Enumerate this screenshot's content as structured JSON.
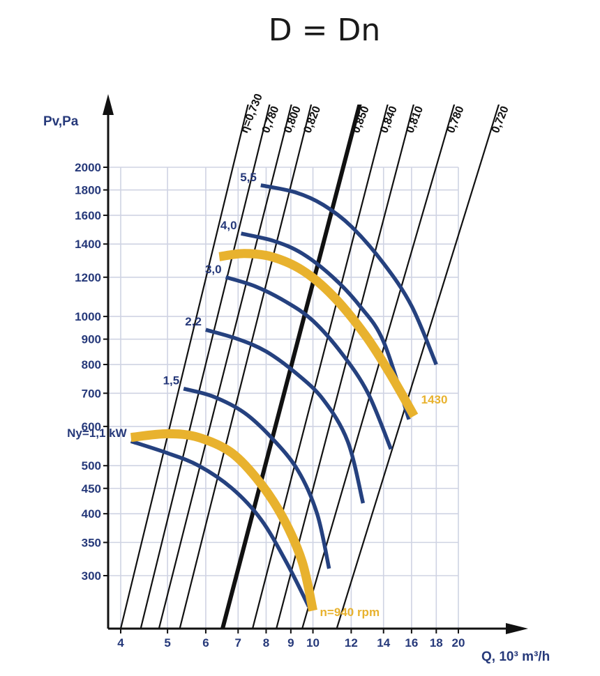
{
  "page": {
    "formula": "D = Dn"
  },
  "chart_data": {
    "type": "line",
    "title": "",
    "xlabel": "Q, 10³ m³/h",
    "ylabel": "Pv,Pa",
    "x_scale": "log",
    "y_scale": "log",
    "xlim": [
      4,
      20
    ],
    "ylim": [
      300,
      2000
    ],
    "x_ticks": [
      "4",
      "5",
      "6",
      "7",
      "8",
      "9",
      "10",
      "12",
      "14",
      "16",
      "18",
      "20"
    ],
    "y_ticks": [
      "300",
      "350",
      "400",
      "450",
      "500",
      "600",
      "700",
      "800",
      "900",
      "1000",
      "1200",
      "1400",
      "1600",
      "1800",
      "2000"
    ],
    "grid": true,
    "colors": {
      "axis": "#26397a",
      "power_curve": "#25417f",
      "speed_curve": "#e8b22e",
      "efficiency_line": "#111111",
      "grid": "#cfd3e3"
    },
    "efficiency_lines": [
      {
        "label": "η=0,730",
        "x_at_top": 7.4,
        "x_at_bottom": 4.0
      },
      {
        "label": "0,780",
        "x_at_top": 8.2,
        "x_at_bottom": 4.4
      },
      {
        "label": "0,800",
        "x_at_top": 9.1,
        "x_at_bottom": 4.8
      },
      {
        "label": "0,820",
        "x_at_top": 10.0,
        "x_at_bottom": 5.3
      },
      {
        "label": "0,850",
        "x_at_top": 12.6,
        "x_at_bottom": 6.5,
        "emphasis": true
      },
      {
        "label": "0,840",
        "x_at_top": 14.4,
        "x_at_bottom": 7.5
      },
      {
        "label": "0,810",
        "x_at_top": 16.3,
        "x_at_bottom": 8.4
      },
      {
        "label": "0,780",
        "x_at_top": 19.8,
        "x_at_bottom": 9.5
      },
      {
        "label": "0,720",
        "x_at_top": 24.5,
        "x_at_bottom": 11.2
      }
    ],
    "power_curves": [
      {
        "label": "5,5",
        "points": [
          [
            7.8,
            1840
          ],
          [
            9.2,
            1780
          ],
          [
            10.5,
            1680
          ],
          [
            12.0,
            1520
          ],
          [
            14.0,
            1280
          ],
          [
            16.0,
            1050
          ],
          [
            18.0,
            800
          ]
        ]
      },
      {
        "label": "4,0",
        "points": [
          [
            7.1,
            1470
          ],
          [
            8.3,
            1420
          ],
          [
            9.5,
            1340
          ],
          [
            11.0,
            1200
          ],
          [
            12.5,
            1050
          ],
          [
            14.0,
            890
          ],
          [
            15.8,
            620
          ]
        ]
      },
      {
        "label": "3,0",
        "points": [
          [
            6.6,
            1200
          ],
          [
            7.6,
            1150
          ],
          [
            8.8,
            1070
          ],
          [
            10.0,
            980
          ],
          [
            11.5,
            840
          ],
          [
            13.0,
            700
          ],
          [
            14.5,
            540
          ]
        ]
      },
      {
        "label": "2,2",
        "points": [
          [
            6.0,
            940
          ],
          [
            7.0,
            900
          ],
          [
            8.0,
            850
          ],
          [
            9.2,
            770
          ],
          [
            10.5,
            680
          ],
          [
            11.8,
            560
          ],
          [
            12.7,
            420
          ]
        ]
      },
      {
        "label": "1,5",
        "points": [
          [
            5.4,
            715
          ],
          [
            6.2,
            690
          ],
          [
            7.2,
            640
          ],
          [
            8.2,
            570
          ],
          [
            9.3,
            490
          ],
          [
            10.2,
            400
          ],
          [
            10.8,
            310
          ]
        ]
      },
      {
        "label": "Ny=1,1 kW",
        "points": [
          [
            4.2,
            560
          ],
          [
            5.0,
            530
          ],
          [
            5.8,
            500
          ],
          [
            6.8,
            450
          ],
          [
            7.8,
            390
          ],
          [
            8.8,
            320
          ],
          [
            9.8,
            260
          ]
        ]
      }
    ],
    "speed_curves": [
      {
        "label": "1430",
        "points": [
          [
            6.4,
            1320
          ],
          [
            7.2,
            1340
          ],
          [
            8.2,
            1320
          ],
          [
            9.5,
            1240
          ],
          [
            11.0,
            1100
          ],
          [
            12.8,
            920
          ],
          [
            14.4,
            770
          ],
          [
            16.2,
            630
          ]
        ]
      },
      {
        "label": "n=940 rpm",
        "points": [
          [
            4.2,
            570
          ],
          [
            5.0,
            580
          ],
          [
            5.8,
            570
          ],
          [
            6.8,
            530
          ],
          [
            7.8,
            460
          ],
          [
            8.7,
            390
          ],
          [
            9.5,
            320
          ],
          [
            10.0,
            255
          ]
        ]
      }
    ]
  }
}
